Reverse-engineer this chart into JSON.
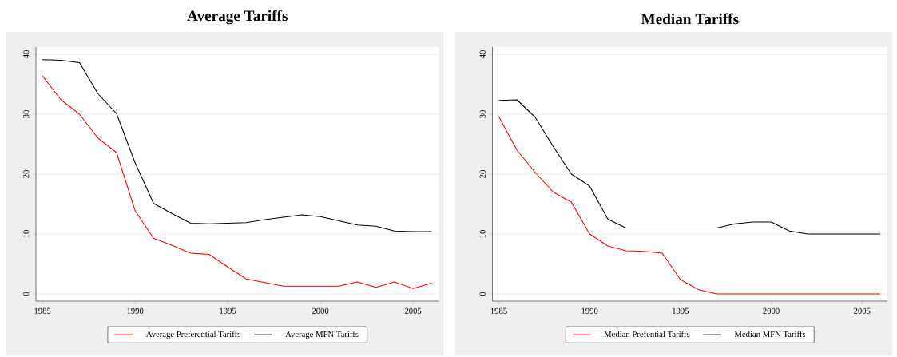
{
  "chart_data": [
    {
      "type": "line",
      "title": "Average Tariffs",
      "x": [
        1985,
        1986,
        1987,
        1988,
        1989,
        1990,
        1991,
        1992,
        1993,
        1994,
        1995,
        1996,
        1997,
        1998,
        1999,
        2000,
        2001,
        2002,
        2003,
        2004,
        2005,
        2006
      ],
      "series": [
        {
          "name": "Average Preferential Tariffs",
          "color": "#ff0000",
          "values": [
            36.4,
            32.4,
            30.0,
            26.0,
            23.6,
            13.9,
            9.3,
            8.1,
            6.8,
            6.6,
            4.5,
            2.5,
            1.9,
            1.3,
            1.3,
            1.3,
            1.3,
            2.0,
            1.1,
            2.0,
            0.9,
            1.8
          ]
        },
        {
          "name": "Average MFN Tariffs",
          "color": "#000000",
          "values": [
            39.1,
            39.0,
            38.6,
            33.4,
            30.1,
            21.9,
            15.1,
            13.4,
            11.8,
            11.7,
            11.8,
            11.9,
            12.4,
            12.8,
            13.2,
            12.9,
            12.2,
            11.5,
            11.3,
            10.5,
            10.4,
            10.4
          ]
        }
      ],
      "xlim": [
        1984.65,
        2006.4
      ],
      "ylim": [
        -1.2,
        41.2
      ],
      "xticks": [
        1985,
        1990,
        1995,
        2000,
        2005
      ],
      "yticks": [
        0,
        10,
        20,
        30,
        40
      ],
      "grid": "y",
      "legend": "bottom",
      "line_style": "solid"
    },
    {
      "type": "line",
      "title": "Median Tariffs",
      "x": [
        1985,
        1986,
        1987,
        1988,
        1989,
        1990,
        1991,
        1992,
        1993,
        1994,
        1995,
        1996,
        1997,
        1998,
        1999,
        2000,
        2001,
        2002,
        2003,
        2004,
        2005,
        2006
      ],
      "series": [
        {
          "name": "Median Prefential Tariffs",
          "color": "#ff0000",
          "values": [
            29.6,
            24.0,
            20.3,
            17.0,
            15.3,
            10.0,
            8.0,
            7.2,
            7.1,
            6.8,
            2.4,
            0.7,
            0,
            0,
            0,
            0,
            0,
            0,
            0,
            0,
            0,
            0
          ]
        },
        {
          "name": "Median MFN Tariffs",
          "color": "#000000",
          "values": [
            32.3,
            32.4,
            29.5,
            24.6,
            20.0,
            18.0,
            12.5,
            11.0,
            11.0,
            11.0,
            11.0,
            11.0,
            11.0,
            11.7,
            12.0,
            12.0,
            10.5,
            10.0,
            10.0,
            10.0,
            10.0,
            10.0
          ]
        }
      ],
      "xlim": [
        1984.65,
        2006.4
      ],
      "ylim": [
        -1.2,
        41.2
      ],
      "xticks": [
        1985,
        1990,
        1995,
        2000,
        2005
      ],
      "yticks": [
        0,
        10,
        20,
        30,
        40
      ],
      "grid": "y",
      "legend": "bottom",
      "line_style": "solid"
    }
  ]
}
